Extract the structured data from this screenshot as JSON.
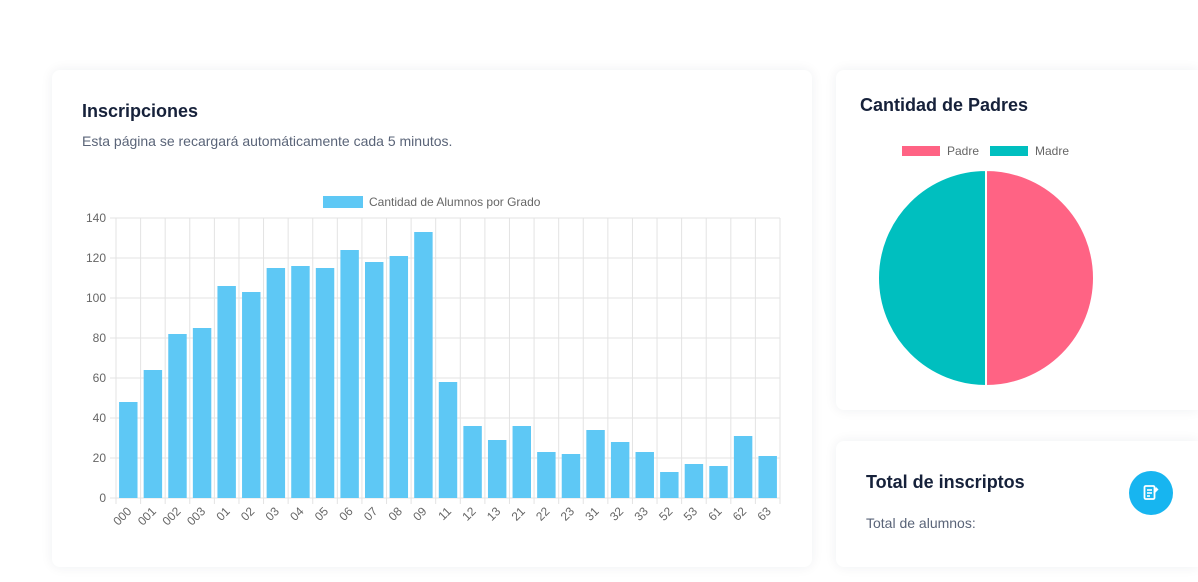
{
  "inscripciones": {
    "title": "Inscripciones",
    "subtitle": "Esta página se recargará automáticamente cada 5 minutos."
  },
  "padres": {
    "title": "Cantidad de Padres"
  },
  "total": {
    "title": "Total de inscriptos",
    "label": "Total de alumnos:",
    "button_icon": "document-edit-icon"
  },
  "colors": {
    "bar": "#5ec8f5",
    "padre": "#ff6384",
    "madre": "#00bfbf",
    "accent": "#17b5f0"
  },
  "chart_data": [
    {
      "type": "bar",
      "legend_position": "top",
      "grid": true,
      "ylim": [
        0,
        140
      ],
      "yticks": [
        0,
        20,
        40,
        60,
        80,
        100,
        120,
        140
      ],
      "categories": [
        "000",
        "001",
        "002",
        "003",
        "01",
        "02",
        "03",
        "04",
        "05",
        "06",
        "07",
        "08",
        "09",
        "11",
        "12",
        "13",
        "21",
        "22",
        "23",
        "31",
        "32",
        "33",
        "52",
        "53",
        "61",
        "62",
        "63"
      ],
      "series": [
        {
          "name": "Cantidad de Alumnos por Grado",
          "values": [
            48,
            64,
            82,
            85,
            106,
            103,
            115,
            116,
            115,
            124,
            118,
            121,
            133,
            58,
            36,
            29,
            36,
            23,
            22,
            34,
            28,
            23,
            13,
            17,
            16,
            31,
            21
          ]
        }
      ]
    },
    {
      "type": "pie",
      "legend_position": "top",
      "categories": [
        "Padre",
        "Madre"
      ],
      "values": [
        50,
        50
      ]
    }
  ]
}
